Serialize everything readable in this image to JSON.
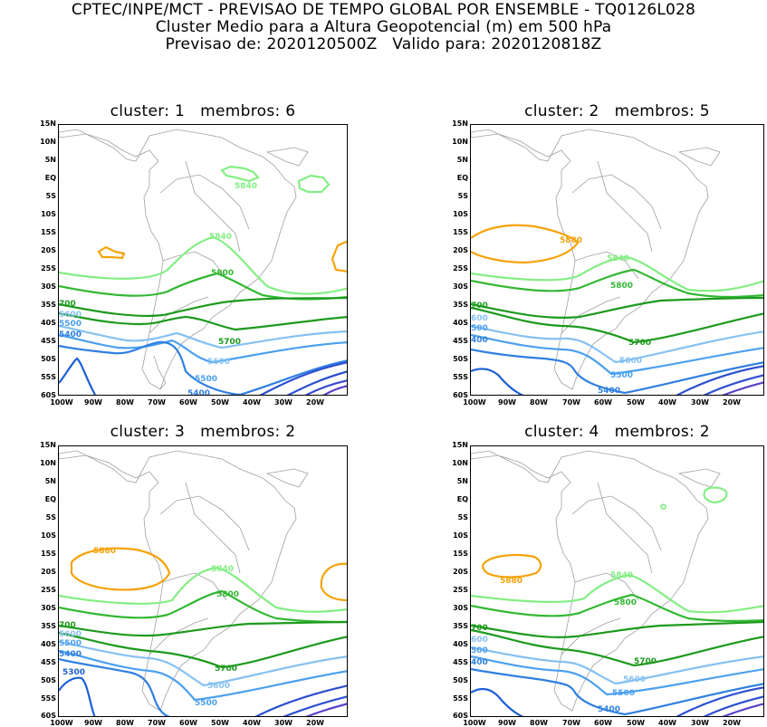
{
  "header": {
    "line1": "CPTEC/INPE/MCT - PREVISAO DE TEMPO GLOBAL POR ENSEMBLE - TQ0126L028",
    "line2": "Cluster Medio para a Altura Geopotencial (m) em 500 hPa",
    "line3": "Previsao de: 2020120500Z   Valido para: 2020120818Z"
  },
  "axes": {
    "lat_labels": [
      "15N",
      "10N",
      "5N",
      "EQ",
      "5S",
      "10S",
      "15S",
      "20S",
      "25S",
      "30S",
      "35S",
      "40S",
      "45S",
      "50S",
      "55S",
      "60S"
    ],
    "lon_labels": [
      "100W",
      "90W",
      "80W",
      "70W",
      "60W",
      "50W",
      "40W",
      "30W",
      "20W"
    ]
  },
  "colors": {
    "c5300": "#1c5fd6",
    "c5400": "#2f7fe0",
    "c5500": "#4ba0f0",
    "c5600": "#86c1f2",
    "c5700": "#1d9a1d",
    "c5800": "#33b833",
    "c5840": "#84ee84",
    "c5880": "#f5a30a",
    "deep1": "#2b4fcf",
    "deep2": "#5a3fc8",
    "deep3": "#7a4ad8",
    "coast": "#a0a0a0"
  },
  "panels": [
    {
      "title": "cluster: 1   membros: 6",
      "labels": {
        "c5840": "5840",
        "c5840b": "5840",
        "c5800": "5800",
        "c5700a": "700",
        "c5600a": "5600",
        "c5500a": "5500",
        "c5400a": "5400",
        "c5700b": "5700",
        "c5600b": "5600",
        "c5500b": "5500",
        "c5400b": "5400"
      }
    },
    {
      "title": "cluster: 2   membros: 5",
      "labels": {
        "c5880": "5880",
        "c5840": "5840",
        "c5800": "5800",
        "c5700a": "700",
        "c5600a": "600",
        "c5500a": "500",
        "c5400a": "400",
        "c5700b": "5700",
        "c5600b": "5600",
        "c5500b": "5500",
        "c5400b": "5400"
      }
    },
    {
      "title": "cluster: 3   membros: 2",
      "labels": {
        "c5880": "5880",
        "c5840": "5840",
        "c5800": "5800",
        "c5700a": "700",
        "c5600a": "5600",
        "c5500a": "5500",
        "c5400a": "5400",
        "c5300a": "5300",
        "c5700b": "5700",
        "c5600b": "5600",
        "c5500b": "5500"
      }
    },
    {
      "title": "cluster: 4   membros: 2",
      "labels": {
        "c5880": "5880",
        "c5840": "5840",
        "c5800": "5800",
        "c5700a": "700",
        "c5600a": "600",
        "c5500a": "500",
        "c5400a": "400",
        "c5700b": "5700",
        "c5600b": "5600",
        "c5500b": "5500",
        "c5400b": "5400"
      }
    }
  ]
}
